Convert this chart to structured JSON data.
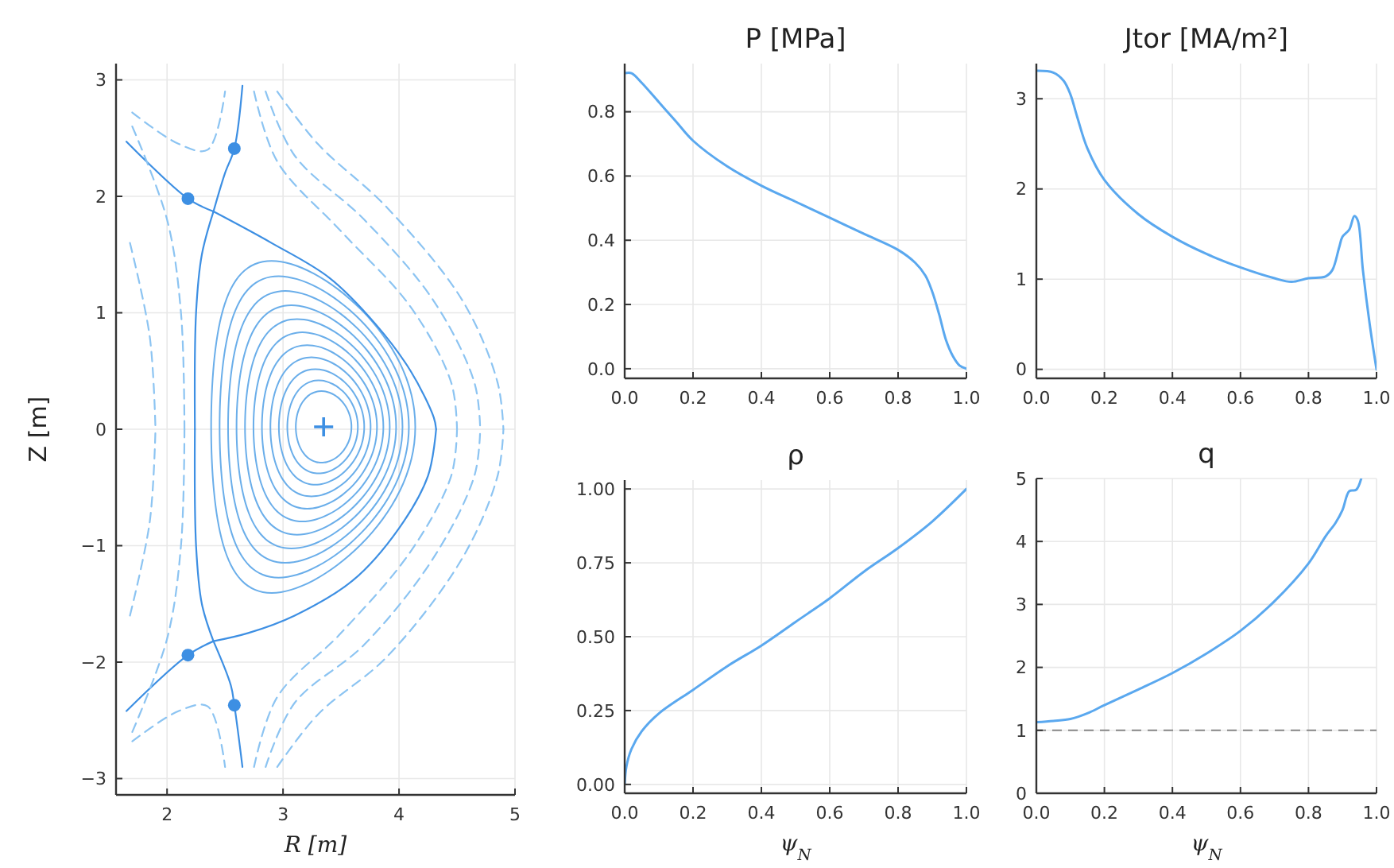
{
  "chart_data": [
    {
      "type": "line",
      "xlabel": "R [m]",
      "ylabel": "Z [m]",
      "xlim": [
        1.56,
        5
      ],
      "ylim": [
        -3.14,
        3.14
      ],
      "xticks": [
        2,
        3,
        4,
        5
      ],
      "yticks": [
        {
          "value": -3,
          "label": "−3"
        },
        {
          "value": -2,
          "label": "−2"
        },
        {
          "value": -1,
          "label": "−1"
        },
        0,
        1,
        2,
        3
      ],
      "grid": true,
      "series": [
        {
          "color": "#3d8fe3",
          "x": [
            2.4,
            2.9,
            3.4,
            3.8,
            4.1,
            4.3,
            4.32
          ],
          "values": [
            1.87,
            1.6,
            1.3,
            0.9,
            0.5,
            0.1,
            0
          ]
        },
        {
          "color": "#3d8fe3",
          "x": [
            2.4,
            2.7,
            3.1,
            3.6,
            4.0,
            4.25,
            4.32
          ],
          "values": [
            -1.82,
            -1.75,
            -1.6,
            -1.3,
            -0.85,
            -0.4,
            0
          ]
        },
        {
          "color": "#3d8fe3",
          "x": [
            2.24,
            2.25,
            2.3,
            2.4
          ],
          "values": [
            0,
            1.0,
            1.5,
            1.87
          ]
        },
        {
          "color": "#3d8fe3",
          "x": [
            2.24,
            2.25,
            2.3,
            2.4
          ],
          "values": [
            0,
            -1.0,
            -1.5,
            -1.82
          ]
        },
        {
          "color": "#3d8fe3",
          "x": [
            1.65,
            2.18,
            2.4
          ],
          "values": [
            2.47,
            1.98,
            1.87
          ]
        },
        {
          "color": "#3d8fe3",
          "x": [
            2.4,
            2.5,
            2.58,
            2.65
          ],
          "values": [
            1.87,
            2.2,
            2.41,
            2.95
          ]
        },
        {
          "color": "#3d8fe3",
          "x": [
            1.65,
            2.18,
            2.4
          ],
          "values": [
            -2.42,
            -1.94,
            -1.82
          ]
        },
        {
          "color": "#3d8fe3",
          "x": [
            2.4,
            2.55,
            2.58,
            2.65
          ],
          "values": [
            -1.82,
            -2.2,
            -2.37,
            -2.9
          ]
        },
        {
          "color": "#8cc4f2",
          "line_style": "dashed",
          "x": [
            2.75,
            2.95,
            3.5,
            4.1,
            4.45,
            4.5
          ],
          "values": [
            2.9,
            2.3,
            1.7,
            1.05,
            0.4,
            0
          ]
        },
        {
          "color": "#8cc4f2",
          "line_style": "dashed",
          "x": [
            2.75,
            2.95,
            3.5,
            4.1,
            4.45,
            4.5
          ],
          "values": [
            -2.9,
            -2.3,
            -1.75,
            -1.05,
            -0.4,
            0
          ]
        },
        {
          "color": "#8cc4f2",
          "line_style": "dashed",
          "x": [
            2.85,
            3.1,
            3.7,
            4.3,
            4.65,
            4.7
          ],
          "values": [
            2.9,
            2.35,
            1.8,
            1.1,
            0.4,
            0
          ]
        },
        {
          "color": "#8cc4f2",
          "line_style": "dashed",
          "x": [
            2.85,
            3.1,
            3.7,
            4.3,
            4.65,
            4.7
          ],
          "values": [
            -2.9,
            -2.35,
            -1.85,
            -1.1,
            -0.4,
            0
          ]
        },
        {
          "color": "#8cc4f2",
          "line_style": "dashed",
          "x": [
            2.95,
            3.3,
            3.9,
            4.55,
            4.85,
            4.9
          ],
          "values": [
            2.9,
            2.45,
            1.9,
            1.1,
            0.4,
            0
          ]
        },
        {
          "color": "#8cc4f2",
          "line_style": "dashed",
          "x": [
            2.95,
            3.3,
            3.9,
            4.55,
            4.85,
            4.9
          ],
          "values": [
            -2.9,
            -2.45,
            -1.95,
            -1.1,
            -0.4,
            0
          ]
        },
        {
          "color": "#8cc4f2",
          "line_style": "dashed",
          "x": [
            1.7,
            2.0,
            2.12,
            2.15
          ],
          "values": [
            2.6,
            1.8,
            1.0,
            0
          ]
        },
        {
          "color": "#8cc4f2",
          "line_style": "dashed",
          "x": [
            1.7,
            2.0,
            2.12,
            2.15
          ],
          "values": [
            -2.6,
            -1.8,
            -1.0,
            0
          ]
        },
        {
          "color": "#8cc4f2",
          "line_style": "dashed",
          "x": [
            1.68,
            1.85,
            1.9
          ],
          "values": [
            1.6,
            0.8,
            0
          ]
        },
        {
          "color": "#8cc4f2",
          "line_style": "dashed",
          "x": [
            1.68,
            1.85,
            1.9
          ],
          "values": [
            -1.6,
            -0.8,
            0
          ]
        },
        {
          "color": "#8cc4f2",
          "line_style": "dashed",
          "x": [
            1.7,
            2.1,
            2.35,
            2.5
          ],
          "values": [
            2.72,
            2.45,
            2.4,
            2.9
          ]
        },
        {
          "color": "#8cc4f2",
          "line_style": "dashed",
          "x": [
            1.7,
            2.1,
            2.35,
            2.5
          ],
          "values": [
            -2.68,
            -2.42,
            -2.38,
            -2.9
          ]
        },
        {
          "type": "scatter",
          "marker": "circle",
          "color": "#3d8fe3",
          "x": [
            2.18,
            2.58,
            2.18,
            2.58
          ],
          "values": [
            1.98,
            2.41,
            -1.94,
            -2.37
          ]
        },
        {
          "type": "scatter",
          "marker": "cross",
          "color": "#3d8fe3",
          "x": [
            3.35
          ],
          "values": [
            0.02
          ]
        }
      ]
    },
    {
      "type": "line",
      "title": "P [MPa]",
      "xlim": [
        0,
        1
      ],
      "ylim": [
        -0.03,
        0.95
      ],
      "xticks": [
        {
          "value": 0,
          "label": "0.0"
        },
        {
          "value": 0.2,
          "label": "0.2"
        },
        {
          "value": 0.4,
          "label": "0.4"
        },
        {
          "value": 0.6,
          "label": "0.6"
        },
        {
          "value": 0.8,
          "label": "0.8"
        },
        {
          "value": 1,
          "label": "1.0"
        }
      ],
      "yticks": [
        {
          "value": 0,
          "label": "0.0"
        },
        {
          "value": 0.2,
          "label": "0.2"
        },
        {
          "value": 0.4,
          "label": "0.4"
        },
        {
          "value": 0.6,
          "label": "0.6"
        },
        {
          "value": 0.8,
          "label": "0.8"
        }
      ],
      "grid": true,
      "series": [
        {
          "color": "#5aa8ef",
          "x": [
            0,
            0.02,
            0.05,
            0.1,
            0.15,
            0.2,
            0.3,
            0.4,
            0.5,
            0.6,
            0.7,
            0.8,
            0.85,
            0.88,
            0.9,
            0.92,
            0.94,
            0.96,
            0.98,
            1
          ],
          "values": [
            0.92,
            0.92,
            0.89,
            0.83,
            0.77,
            0.71,
            0.63,
            0.57,
            0.52,
            0.47,
            0.42,
            0.37,
            0.33,
            0.29,
            0.24,
            0.17,
            0.09,
            0.04,
            0.01,
            0
          ]
        }
      ]
    },
    {
      "type": "line",
      "title": "Jtor [MA/m²]",
      "xlim": [
        0,
        1
      ],
      "ylim": [
        -0.1,
        3.39
      ],
      "xticks": [
        {
          "value": 0,
          "label": "0.0"
        },
        {
          "value": 0.2,
          "label": "0.2"
        },
        {
          "value": 0.4,
          "label": "0.4"
        },
        {
          "value": 0.6,
          "label": "0.6"
        },
        {
          "value": 0.8,
          "label": "0.8"
        },
        {
          "value": 1,
          "label": "1.0"
        }
      ],
      "yticks": [
        0,
        1,
        2,
        3
      ],
      "grid": true,
      "series": [
        {
          "color": "#5aa8ef",
          "x": [
            0,
            0.05,
            0.08,
            0.1,
            0.12,
            0.15,
            0.2,
            0.3,
            0.4,
            0.5,
            0.6,
            0.7,
            0.75,
            0.8,
            0.85,
            0.87,
            0.89,
            0.9,
            0.92,
            0.935,
            0.945,
            0.96,
            0.98,
            1
          ],
          "values": [
            3.31,
            3.29,
            3.2,
            3.05,
            2.8,
            2.45,
            2.1,
            1.72,
            1.47,
            1.28,
            1.13,
            1.01,
            0.97,
            1.01,
            1.03,
            1.1,
            1.35,
            1.47,
            1.55,
            1.7,
            1.65,
            1.1,
            0.5,
            0
          ]
        }
      ]
    },
    {
      "type": "line",
      "title": "ρ",
      "xlabel": "ψ$_{N}$",
      "xlim": [
        0,
        1
      ],
      "ylim": [
        -0.03,
        1.03
      ],
      "xticks": [
        {
          "value": 0,
          "label": "0.0"
        },
        {
          "value": 0.2,
          "label": "0.2"
        },
        {
          "value": 0.4,
          "label": "0.4"
        },
        {
          "value": 0.6,
          "label": "0.6"
        },
        {
          "value": 0.8,
          "label": "0.8"
        },
        {
          "value": 1,
          "label": "1.0"
        }
      ],
      "yticks": [
        {
          "value": 0,
          "label": "0.00"
        },
        {
          "value": 0.25,
          "label": "0.25"
        },
        {
          "value": 0.5,
          "label": "0.50"
        },
        {
          "value": 0.75,
          "label": "0.75"
        },
        {
          "value": 1,
          "label": "1.00"
        }
      ],
      "grid": true,
      "series": [
        {
          "color": "#5aa8ef",
          "x": [
            0,
            0.005,
            0.02,
            0.05,
            0.1,
            0.2,
            0.3,
            0.4,
            0.5,
            0.6,
            0.7,
            0.8,
            0.9,
            1
          ],
          "values": [
            0,
            0.06,
            0.12,
            0.18,
            0.24,
            0.32,
            0.4,
            0.47,
            0.55,
            0.63,
            0.72,
            0.8,
            0.89,
            1
          ]
        }
      ]
    },
    {
      "type": "line",
      "title": "q",
      "xlabel": "ψ$_{N}$",
      "xlim": [
        0,
        1
      ],
      "ylim": [
        0,
        5
      ],
      "xticks": [
        {
          "value": 0,
          "label": "0.0"
        },
        {
          "value": 0.2,
          "label": "0.2"
        },
        {
          "value": 0.4,
          "label": "0.4"
        },
        {
          "value": 0.6,
          "label": "0.6"
        },
        {
          "value": 0.8,
          "label": "0.8"
        },
        {
          "value": 1,
          "label": "1.0"
        }
      ],
      "yticks": [
        0,
        1,
        2,
        3,
        4,
        5
      ],
      "grid": true,
      "ref_lines": [
        {
          "axis": "y",
          "value": 1,
          "color": "#888888",
          "line_style": "dashed"
        }
      ],
      "series": [
        {
          "color": "#5aa8ef",
          "x": [
            0,
            0.05,
            0.1,
            0.15,
            0.2,
            0.3,
            0.4,
            0.5,
            0.6,
            0.7,
            0.8,
            0.85,
            0.88,
            0.9,
            0.92,
            0.94,
            0.955
          ],
          "values": [
            1.13,
            1.15,
            1.18,
            1.27,
            1.4,
            1.65,
            1.91,
            2.22,
            2.58,
            3.05,
            3.65,
            4.08,
            4.3,
            4.5,
            4.8,
            4.82,
            5.0
          ]
        }
      ]
    }
  ]
}
